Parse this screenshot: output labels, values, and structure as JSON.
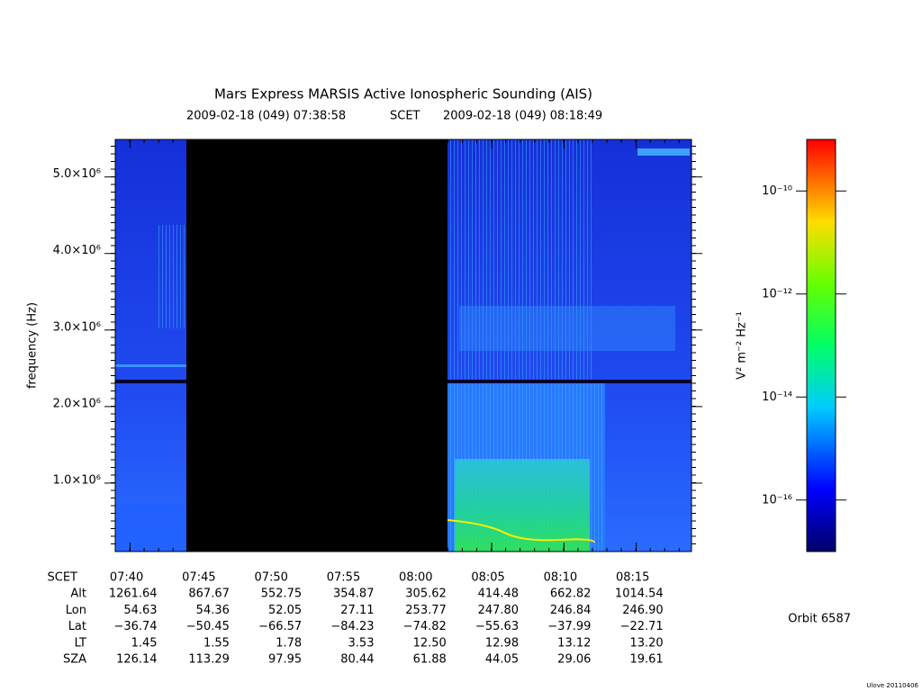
{
  "chart_data": {
    "type": "spectrogram",
    "title": "Mars Express MARSIS Active Ionospheric Sounding (AIS)",
    "subtitle_start": "2009-02-18 (049) 07:38:58",
    "subtitle_mid": "SCET",
    "subtitle_end": "2009-02-18 (049) 08:18:49",
    "y_label": "frequency (Hz)",
    "xlim": [
      458.967,
      498.817
    ],
    "xticks": [
      {
        "value": 460,
        "label": "07:40"
      },
      {
        "value": 465,
        "label": "07:45"
      },
      {
        "value": 470,
        "label": "07:50"
      },
      {
        "value": 475,
        "label": "07:55"
      },
      {
        "value": 480,
        "label": "08:00"
      },
      {
        "value": 485,
        "label": "08:05"
      },
      {
        "value": 490,
        "label": "08:10"
      },
      {
        "value": 495,
        "label": "08:15"
      }
    ],
    "ylim": [
      106000,
      5490000
    ],
    "yticks": [
      {
        "value": 1000000,
        "label": "1.0×10⁶"
      },
      {
        "value": 2000000,
        "label": "2.0×10⁶"
      },
      {
        "value": 3000000,
        "label": "3.0×10⁶"
      },
      {
        "value": 4000000,
        "label": "4.0×10⁶"
      },
      {
        "value": 5000000,
        "label": "5.0×10⁶"
      }
    ],
    "grid": false,
    "colorbar": {
      "label": "V² m⁻² Hz⁻¹",
      "log_scale": true,
      "lim": [
        1e-17,
        1e-09
      ],
      "ticks": [
        {
          "value": 1e-10,
          "label": "10⁻¹⁰"
        },
        {
          "value": 1e-12,
          "label": "10⁻¹²"
        },
        {
          "value": 1e-14,
          "label": "10⁻¹⁴"
        },
        {
          "value": 1e-16,
          "label": "10⁻¹⁶"
        }
      ]
    },
    "ephemeris_header": "SCET",
    "ephemeris": [
      {
        "name": "Alt",
        "values": [
          "1261.64",
          "867.67",
          "552.75",
          "354.87",
          "305.62",
          "414.48",
          "662.82",
          "1014.54"
        ]
      },
      {
        "name": "Lon",
        "values": [
          "54.63",
          "54.36",
          "52.05",
          "27.11",
          "253.77",
          "247.80",
          "246.84",
          "246.90"
        ]
      },
      {
        "name": "Lat",
        "values": [
          "−36.74",
          "−50.45",
          "−66.57",
          "−84.23",
          "−74.82",
          "−55.63",
          "−37.99",
          "−22.71"
        ]
      },
      {
        "name": "LT",
        "values": [
          "1.45",
          "1.55",
          "1.78",
          "3.53",
          "12.50",
          "12.98",
          "13.12",
          "13.20"
        ]
      },
      {
        "name": "SZA",
        "values": [
          "126.14",
          "113.29",
          "97.95",
          "80.44",
          "61.88",
          "44.05",
          "29.06",
          "19.61"
        ]
      }
    ],
    "orbit": "Orbit 6587",
    "credit": "Ulove 20110406"
  }
}
